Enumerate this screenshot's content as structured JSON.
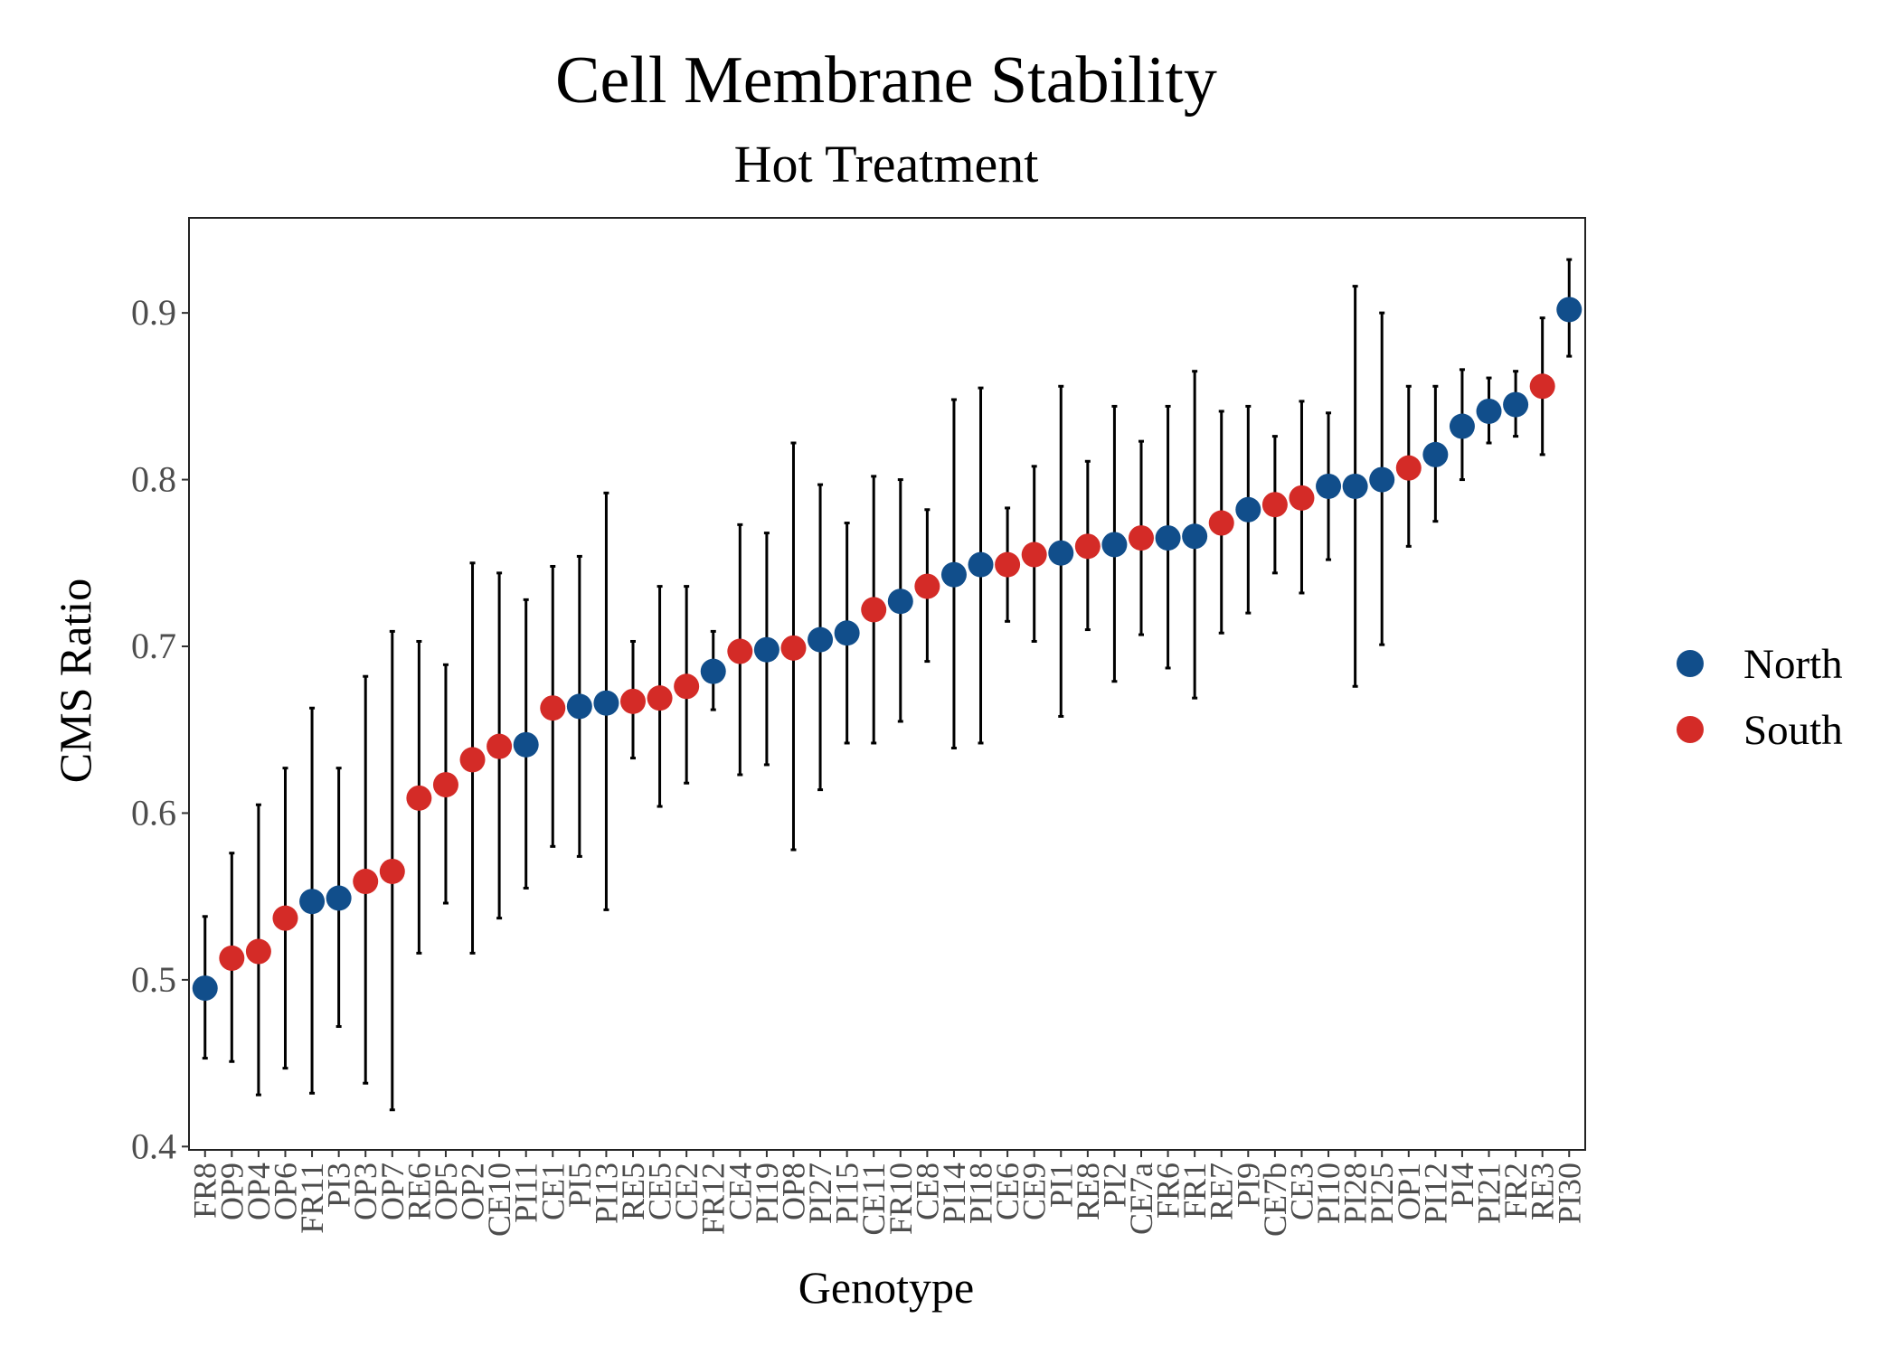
{
  "chart_data": {
    "type": "scatter",
    "title": "Cell Membrane Stability",
    "subtitle": "Hot Treatment",
    "xlabel": "Genotype",
    "ylabel": "CMS Ratio",
    "ylim": [
      0.398,
      0.957
    ],
    "yticks": [
      0.4,
      0.5,
      0.6,
      0.7,
      0.8,
      0.9
    ],
    "grid": false,
    "legend_position": "right",
    "series": [
      {
        "name": "North",
        "color": "#114e8b"
      },
      {
        "name": "South",
        "color": "#d42b27"
      }
    ],
    "points": [
      {
        "x": "FR8",
        "y": 0.495,
        "lo": 0.453,
        "hi": 0.538,
        "group": "North"
      },
      {
        "x": "OP9",
        "y": 0.513,
        "lo": 0.451,
        "hi": 0.576,
        "group": "South"
      },
      {
        "x": "OP4",
        "y": 0.517,
        "lo": 0.431,
        "hi": 0.605,
        "group": "South"
      },
      {
        "x": "OP6",
        "y": 0.537,
        "lo": 0.447,
        "hi": 0.627,
        "group": "South"
      },
      {
        "x": "FR11",
        "y": 0.547,
        "lo": 0.432,
        "hi": 0.663,
        "group": "North"
      },
      {
        "x": "PI3",
        "y": 0.549,
        "lo": 0.472,
        "hi": 0.627,
        "group": "North"
      },
      {
        "x": "OP3",
        "y": 0.559,
        "lo": 0.438,
        "hi": 0.682,
        "group": "South"
      },
      {
        "x": "OP7",
        "y": 0.565,
        "lo": 0.422,
        "hi": 0.709,
        "group": "South"
      },
      {
        "x": "RE6",
        "y": 0.609,
        "lo": 0.516,
        "hi": 0.703,
        "group": "South"
      },
      {
        "x": "OP5",
        "y": 0.617,
        "lo": 0.546,
        "hi": 0.689,
        "group": "South"
      },
      {
        "x": "OP2",
        "y": 0.632,
        "lo": 0.516,
        "hi": 0.75,
        "group": "South"
      },
      {
        "x": "CE10",
        "y": 0.64,
        "lo": 0.537,
        "hi": 0.744,
        "group": "South"
      },
      {
        "x": "PI11",
        "y": 0.641,
        "lo": 0.555,
        "hi": 0.728,
        "group": "North"
      },
      {
        "x": "CE1",
        "y": 0.663,
        "lo": 0.58,
        "hi": 0.748,
        "group": "South"
      },
      {
        "x": "PI5",
        "y": 0.664,
        "lo": 0.574,
        "hi": 0.754,
        "group": "North"
      },
      {
        "x": "PI13",
        "y": 0.666,
        "lo": 0.542,
        "hi": 0.792,
        "group": "North"
      },
      {
        "x": "RE5",
        "y": 0.667,
        "lo": 0.633,
        "hi": 0.703,
        "group": "South"
      },
      {
        "x": "CE5",
        "y": 0.669,
        "lo": 0.604,
        "hi": 0.736,
        "group": "South"
      },
      {
        "x": "CE2",
        "y": 0.676,
        "lo": 0.618,
        "hi": 0.736,
        "group": "South"
      },
      {
        "x": "FR12",
        "y": 0.685,
        "lo": 0.662,
        "hi": 0.709,
        "group": "North"
      },
      {
        "x": "CE4",
        "y": 0.697,
        "lo": 0.623,
        "hi": 0.773,
        "group": "South"
      },
      {
        "x": "PI19",
        "y": 0.698,
        "lo": 0.629,
        "hi": 0.768,
        "group": "North"
      },
      {
        "x": "OP8",
        "y": 0.699,
        "lo": 0.578,
        "hi": 0.822,
        "group": "South"
      },
      {
        "x": "PI27",
        "y": 0.704,
        "lo": 0.614,
        "hi": 0.797,
        "group": "North"
      },
      {
        "x": "PI15",
        "y": 0.708,
        "lo": 0.642,
        "hi": 0.774,
        "group": "North"
      },
      {
        "x": "CE11",
        "y": 0.722,
        "lo": 0.642,
        "hi": 0.802,
        "group": "South"
      },
      {
        "x": "FR10",
        "y": 0.727,
        "lo": 0.655,
        "hi": 0.8,
        "group": "North"
      },
      {
        "x": "CE8",
        "y": 0.736,
        "lo": 0.691,
        "hi": 0.782,
        "group": "South"
      },
      {
        "x": "PI14",
        "y": 0.743,
        "lo": 0.639,
        "hi": 0.848,
        "group": "North"
      },
      {
        "x": "PI18",
        "y": 0.749,
        "lo": 0.642,
        "hi": 0.855,
        "group": "North"
      },
      {
        "x": "CE6",
        "y": 0.749,
        "lo": 0.715,
        "hi": 0.783,
        "group": "South"
      },
      {
        "x": "CE9",
        "y": 0.755,
        "lo": 0.703,
        "hi": 0.808,
        "group": "South"
      },
      {
        "x": "PI1",
        "y": 0.756,
        "lo": 0.658,
        "hi": 0.856,
        "group": "North"
      },
      {
        "x": "RE8",
        "y": 0.76,
        "lo": 0.71,
        "hi": 0.811,
        "group": "South"
      },
      {
        "x": "PI2",
        "y": 0.761,
        "lo": 0.679,
        "hi": 0.844,
        "group": "North"
      },
      {
        "x": "CE7a",
        "y": 0.765,
        "lo": 0.707,
        "hi": 0.823,
        "group": "South"
      },
      {
        "x": "FR6",
        "y": 0.765,
        "lo": 0.687,
        "hi": 0.844,
        "group": "North"
      },
      {
        "x": "FR1",
        "y": 0.766,
        "lo": 0.669,
        "hi": 0.865,
        "group": "North"
      },
      {
        "x": "RE7",
        "y": 0.774,
        "lo": 0.708,
        "hi": 0.841,
        "group": "South"
      },
      {
        "x": "PI9",
        "y": 0.782,
        "lo": 0.72,
        "hi": 0.844,
        "group": "North"
      },
      {
        "x": "CE7b",
        "y": 0.785,
        "lo": 0.744,
        "hi": 0.826,
        "group": "South"
      },
      {
        "x": "CE3",
        "y": 0.789,
        "lo": 0.732,
        "hi": 0.847,
        "group": "South"
      },
      {
        "x": "PI10",
        "y": 0.796,
        "lo": 0.752,
        "hi": 0.84,
        "group": "North"
      },
      {
        "x": "PI28",
        "y": 0.796,
        "lo": 0.676,
        "hi": 0.916,
        "group": "North"
      },
      {
        "x": "PI25",
        "y": 0.8,
        "lo": 0.701,
        "hi": 0.9,
        "group": "North"
      },
      {
        "x": "OP1",
        "y": 0.807,
        "lo": 0.76,
        "hi": 0.856,
        "group": "South"
      },
      {
        "x": "PI12",
        "y": 0.815,
        "lo": 0.775,
        "hi": 0.856,
        "group": "North"
      },
      {
        "x": "PI4",
        "y": 0.832,
        "lo": 0.8,
        "hi": 0.866,
        "group": "North"
      },
      {
        "x": "PI21",
        "y": 0.841,
        "lo": 0.822,
        "hi": 0.861,
        "group": "North"
      },
      {
        "x": "FR2",
        "y": 0.845,
        "lo": 0.826,
        "hi": 0.865,
        "group": "North"
      },
      {
        "x": "RE3",
        "y": 0.856,
        "lo": 0.815,
        "hi": 0.897,
        "group": "South"
      },
      {
        "x": "PI30",
        "y": 0.902,
        "lo": 0.874,
        "hi": 0.932,
        "group": "North"
      }
    ]
  }
}
